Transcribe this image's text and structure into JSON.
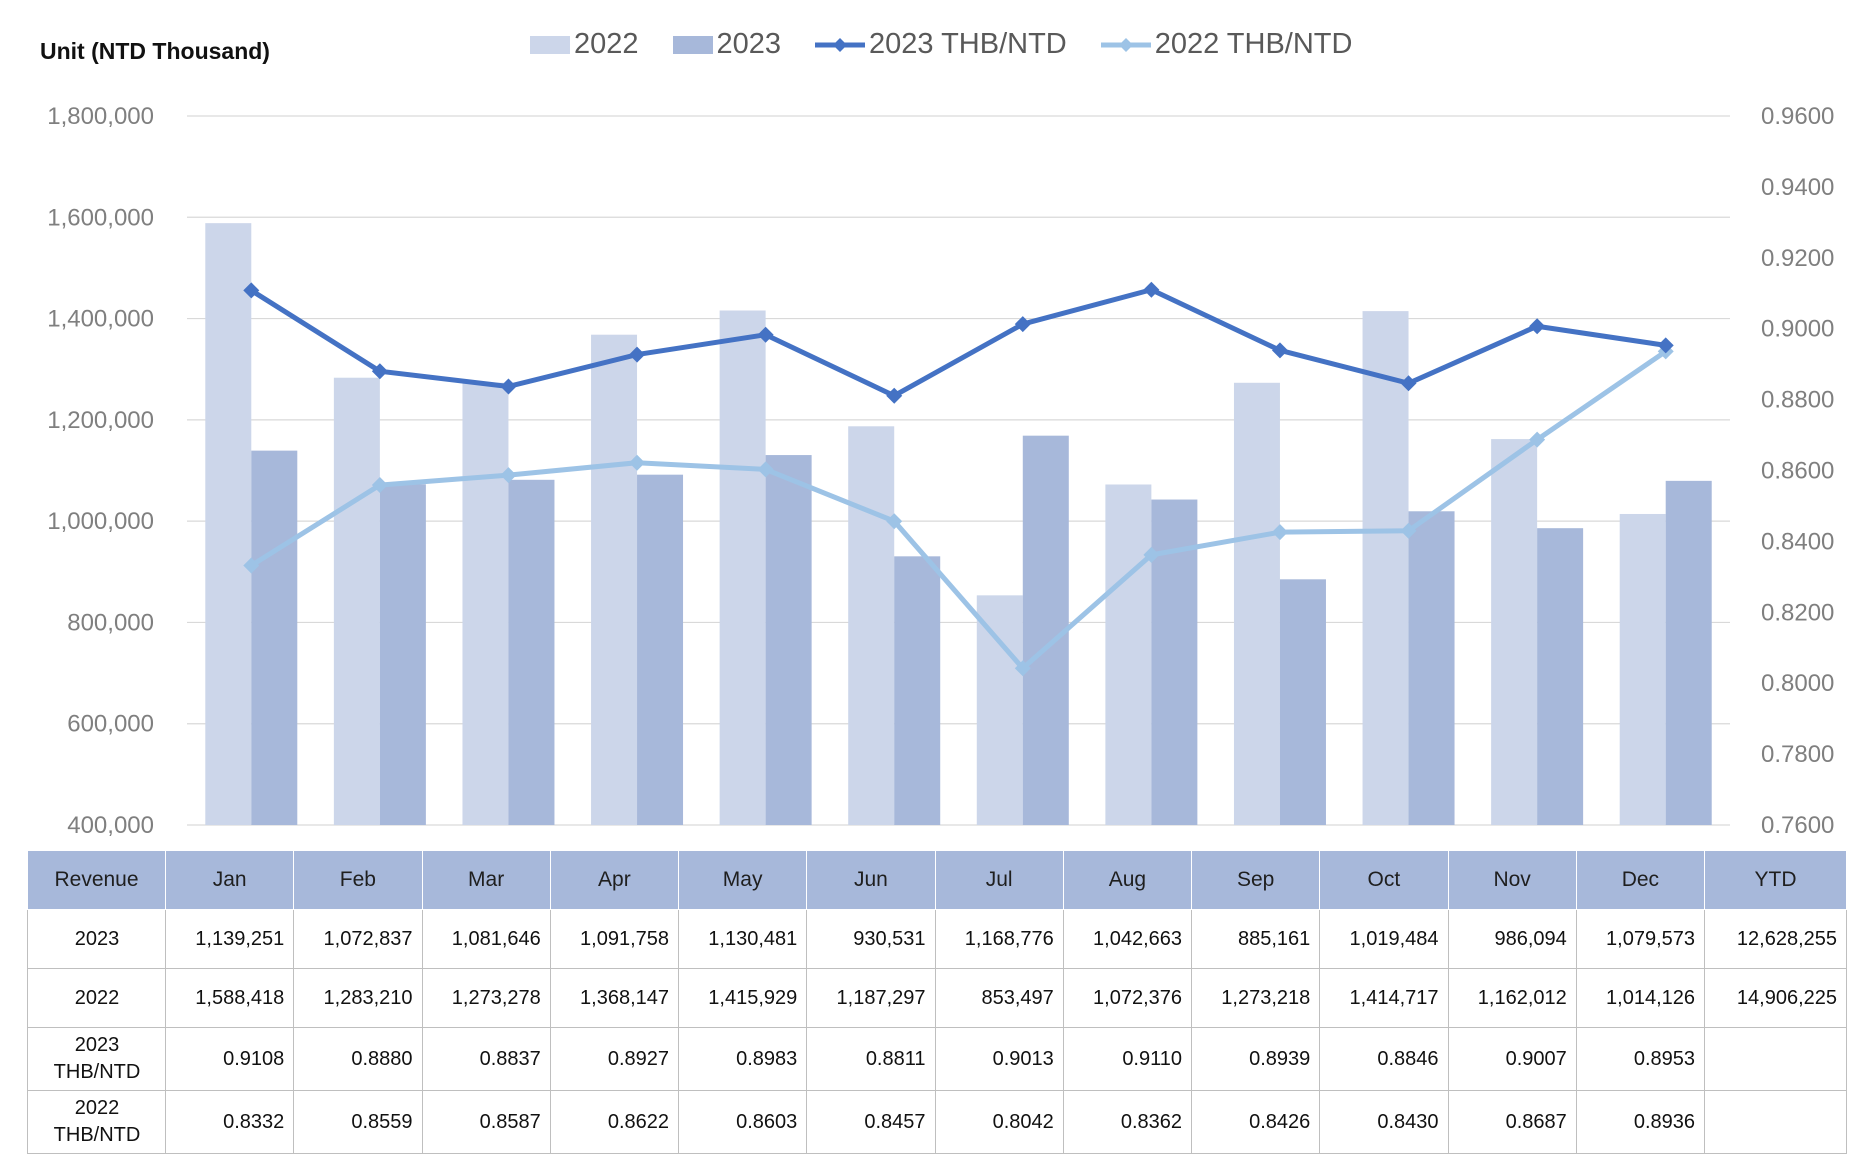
{
  "unit_label": "Unit (NTD  Thousand)",
  "legend": [
    "2022",
    "2023",
    "2023 THB/NTD",
    "2022 THB/NTD"
  ],
  "colors": {
    "bar_2022": "#ccd6ea",
    "bar_2023": "#a7b8da",
    "line_2023": "#4472c4",
    "line_2022": "#9dc3e6",
    "table_header": "#a7b8da",
    "grid": "#d9d9d9"
  },
  "chart_data": {
    "type": "bar",
    "categories": [
      "Jan",
      "Feb",
      "Mar",
      "Apr",
      "May",
      "Jun",
      "Jul",
      "Aug",
      "Sep",
      "Oct",
      "Nov",
      "Dec"
    ],
    "series": [
      {
        "name": "2022",
        "type": "bar",
        "axis": "left",
        "values": [
          1588418,
          1283210,
          1273278,
          1368147,
          1415929,
          1187297,
          853497,
          1072376,
          1273218,
          1414717,
          1162012,
          1014126
        ]
      },
      {
        "name": "2023",
        "type": "bar",
        "axis": "left",
        "values": [
          1139251,
          1072837,
          1081646,
          1091758,
          1130481,
          930531,
          1168776,
          1042663,
          885161,
          1019484,
          986094,
          1079573
        ]
      },
      {
        "name": "2023 THB/NTD",
        "type": "line",
        "axis": "right",
        "marker": "diamond",
        "values": [
          0.9108,
          0.888,
          0.8837,
          0.8927,
          0.8983,
          0.8811,
          0.9013,
          0.911,
          0.8939,
          0.8846,
          0.9007,
          0.8953
        ]
      },
      {
        "name": "2022 THB/NTD",
        "type": "line",
        "axis": "right",
        "marker": "diamond",
        "values": [
          0.8332,
          0.8559,
          0.8587,
          0.8622,
          0.8603,
          0.8457,
          0.8042,
          0.8362,
          0.8426,
          0.843,
          0.8687,
          0.8936
        ]
      }
    ],
    "y_left": {
      "ylim": [
        400000,
        1800000
      ],
      "ticks": [
        "400,000",
        "600,000",
        "800,000",
        "1,000,000",
        "1,200,000",
        "1,400,000",
        "1,600,000",
        "1,800,000"
      ]
    },
    "y_right": {
      "ylim": [
        0.76,
        0.96
      ],
      "ticks": [
        "0.7600",
        "0.7800",
        "0.8000",
        "0.8200",
        "0.8400",
        "0.8600",
        "0.8800",
        "0.9000",
        "0.9200",
        "0.9400",
        "0.9600"
      ]
    },
    "grid": true,
    "legend_position": "top"
  },
  "table": {
    "header": [
      "Revenue",
      "Jan",
      "Feb",
      "Mar",
      "Apr",
      "May",
      "Jun",
      "Jul",
      "Aug",
      "Sep",
      "Oct",
      "Nov",
      "Dec",
      "YTD"
    ],
    "rows": [
      {
        "label": [
          "2023"
        ],
        "cells": [
          "1,139,251",
          "1,072,837",
          "1,081,646",
          "1,091,758",
          "1,130,481",
          "930,531",
          "1,168,776",
          "1,042,663",
          "885,161",
          "1,019,484",
          "986,094",
          "1,079,573",
          "12,628,255"
        ]
      },
      {
        "label": [
          "2022"
        ],
        "cells": [
          "1,588,418",
          "1,283,210",
          "1,273,278",
          "1,368,147",
          "1,415,929",
          "1,187,297",
          "853,497",
          "1,072,376",
          "1,273,218",
          "1,414,717",
          "1,162,012",
          "1,014,126",
          "14,906,225"
        ]
      },
      {
        "label": [
          "2023",
          "THB/NTD"
        ],
        "cells": [
          "0.9108",
          "0.8880",
          "0.8837",
          "0.8927",
          "0.8983",
          "0.8811",
          "0.9013",
          "0.9110",
          "0.8939",
          "0.8846",
          "0.9007",
          "0.8953",
          ""
        ]
      },
      {
        "label": [
          "2022",
          "THB/NTD"
        ],
        "cells": [
          "0.8332",
          "0.8559",
          "0.8587",
          "0.8622",
          "0.8603",
          "0.8457",
          "0.8042",
          "0.8362",
          "0.8426",
          "0.8430",
          "0.8687",
          "0.8936",
          ""
        ]
      }
    ]
  }
}
